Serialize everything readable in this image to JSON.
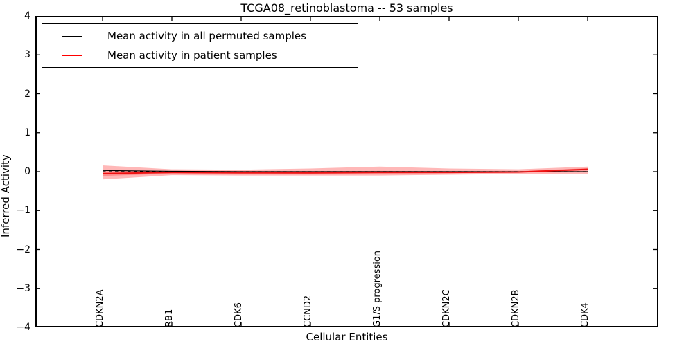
{
  "figure": {
    "title": "TCGA08_retinoblastoma -- 53 samples",
    "xlabel": "Cellular Entities",
    "ylabel": "Inferred Activity"
  },
  "legend": {
    "items": [
      {
        "label": "Mean activity in all permuted samples",
        "color": "#000000"
      },
      {
        "label": "Mean activity in patient samples",
        "color": "#ff0000"
      }
    ]
  },
  "chart_data": {
    "type": "line",
    "title": "TCGA08_retinoblastoma -- 53 samples",
    "xlabel": "Cellular Entities",
    "ylabel": "Inferred Activity",
    "ylim": [
      -4,
      4
    ],
    "y_ticks": [
      "4",
      "3",
      "2",
      "1",
      "0",
      "−1",
      "−2",
      "−3",
      "−4"
    ],
    "y_tick_values": [
      4,
      3,
      2,
      1,
      0,
      -1,
      -2,
      -3,
      -4
    ],
    "grid": false,
    "legend_position": "upper left",
    "categories": [
      "CDKN2A",
      "RB1",
      "CDK6",
      "CCND2",
      "G1/S progression",
      "CDKN2C",
      "CDKN2B",
      "CDK4"
    ],
    "series": [
      {
        "name": "Mean activity in all permuted samples",
        "color": "#000000",
        "style": "solid",
        "width": 1.2,
        "values": [
          0.03,
          0.01,
          0.0,
          0.0,
          0.0,
          0.0,
          0.0,
          0.0
        ]
      },
      {
        "name": "zero-reference",
        "color": "#000000",
        "style": "dashed",
        "width": 1.3,
        "values": [
          0,
          0,
          0,
          0,
          0,
          0,
          0,
          0
        ]
      },
      {
        "name": "Mean activity in patient samples",
        "color": "#ee1111",
        "style": "solid",
        "width": 2,
        "values": [
          -0.05,
          -0.02,
          -0.03,
          -0.03,
          -0.02,
          -0.02,
          -0.01,
          0.06
        ]
      }
    ],
    "bands": [
      {
        "name": "patient-band-outer",
        "color": "#ff2222",
        "opacity": 0.32,
        "upper": [
          0.16,
          0.06,
          0.05,
          0.08,
          0.13,
          0.08,
          0.06,
          0.13
        ],
        "lower": [
          -0.2,
          -0.09,
          -0.1,
          -0.1,
          -0.1,
          -0.08,
          -0.06,
          -0.07
        ]
      },
      {
        "name": "patient-band-inner",
        "color": "#ff2222",
        "opacity": 0.3,
        "upper": [
          0.01,
          0.01,
          0.0,
          0.01,
          0.02,
          0.01,
          0.01,
          0.09
        ],
        "lower": [
          -0.11,
          -0.05,
          -0.06,
          -0.06,
          -0.05,
          -0.04,
          -0.03,
          0.03
        ]
      }
    ]
  }
}
